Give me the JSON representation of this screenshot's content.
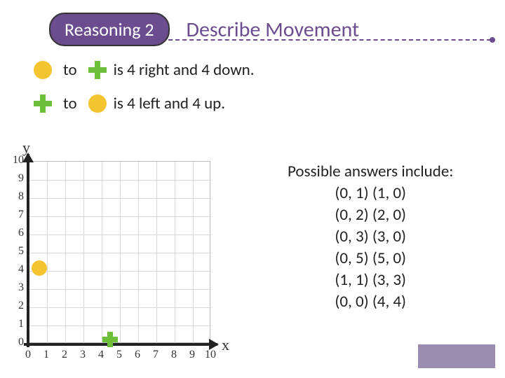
{
  "header": {
    "badge": "Reasoning 2",
    "title": "Describe Movement",
    "badge_bg": "#6b4d8f",
    "badge_text_color": "#ffffff",
    "title_color": "#6b4d8f"
  },
  "statements": [
    {
      "from": "circle",
      "to_word": "to",
      "to": "cross",
      "text": "is 4 right and 4 down."
    },
    {
      "from": "cross",
      "to_word": "to",
      "to": "circle",
      "text": "is 4 left and 4 up."
    }
  ],
  "shapes": {
    "circle_color": "#f4c430",
    "cross_color": "#6dbf3a"
  },
  "chart": {
    "type": "scatter",
    "xlim": [
      0,
      10
    ],
    "ylim": [
      0,
      10
    ],
    "xticks": [
      0,
      1,
      2,
      3,
      4,
      5,
      6,
      7,
      8,
      9,
      10
    ],
    "yticks": [
      0,
      1,
      2,
      3,
      4,
      5,
      6,
      7,
      8,
      9,
      10
    ],
    "xlabel": "x",
    "ylabel": "y",
    "grid_color": "#d8d8d8",
    "axis_color": "#222222",
    "background_color": "#ffffff",
    "label_fontsize": 16,
    "axis_name_fontsize": 22,
    "markers": [
      {
        "shape": "circle",
        "x": 0.6,
        "y": 4.1,
        "color": "#f4c430"
      },
      {
        "shape": "cross",
        "x": 4.5,
        "y": 0.2,
        "color": "#6dbf3a"
      }
    ]
  },
  "answers": {
    "heading": "Possible answers include:",
    "pairs": [
      "(0, 1) (1, 0)",
      "(0, 2) (2,  0)",
      "(0, 3) (3,  0)",
      "(0, 5) (5,  0)",
      "(1, 1) (3,  3)",
      "(0, 0) (4,  4)"
    ]
  },
  "footer_box_color": "#9a8db0"
}
